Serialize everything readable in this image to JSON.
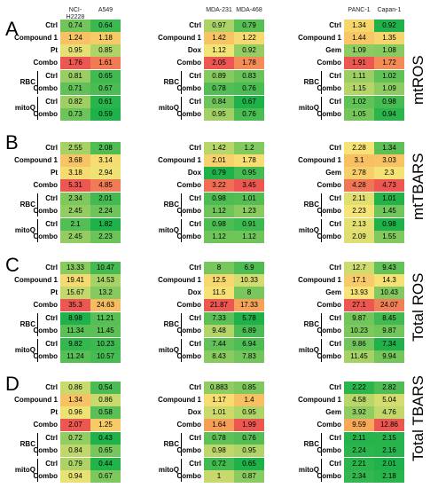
{
  "panel_letters": [
    "A",
    "B",
    "C",
    "D"
  ],
  "side_labels": [
    "mtROS",
    "mtTBARS",
    "Total ROS",
    "Total TBARS"
  ],
  "columns": {
    "left": [
      "NCI-H2228",
      "A549"
    ],
    "mid": [
      "MDA-231",
      "MDA-468"
    ],
    "right": [
      "PANC-1",
      "Capan-1"
    ]
  },
  "row_labels": {
    "left": [
      "Ctrl",
      "Compound 1",
      "Pt",
      "Combo",
      "Ctrl",
      "Combo",
      "Ctrl",
      "Combo"
    ],
    "mid": [
      "Ctrl",
      "Compound 1",
      "Dox",
      "Combo",
      "Ctrl",
      "Combo",
      "Ctrl",
      "Combo"
    ],
    "right": [
      "Ctrl",
      "Compound 1",
      "Gem",
      "Combo",
      "Ctrl",
      "Combo",
      "Ctrl",
      "Combo"
    ]
  },
  "group_labels": [
    "RBC",
    "mitoQ"
  ],
  "panels": [
    {
      "left": [
        [
          "0.74",
          "0.64"
        ],
        [
          "1.24",
          "1.18"
        ],
        [
          "0.95",
          "0.85"
        ],
        [
          "1.76",
          "1.61"
        ],
        [
          "0.81",
          "0.65"
        ],
        [
          "0.71",
          "0.67"
        ],
        [
          "0.82",
          "0.61"
        ],
        [
          "0.73",
          "0.59"
        ]
      ],
      "mid": [
        [
          "0.97",
          "0.79"
        ],
        [
          "1.42",
          "1.22"
        ],
        [
          "1.12",
          "0.92"
        ],
        [
          "2.05",
          "1.78"
        ],
        [
          "0.89",
          "0.83"
        ],
        [
          "0.78",
          "0.76"
        ],
        [
          "0.84",
          "0.67"
        ],
        [
          "0.95",
          "0.76"
        ]
      ],
      "right": [
        [
          "1.34",
          "0.92"
        ],
        [
          "1.44",
          "1.35"
        ],
        [
          "1.09",
          "1.08"
        ],
        [
          "1.91",
          "1.72"
        ],
        [
          "1.11",
          "1.02"
        ],
        [
          "1.15",
          "1.09"
        ],
        [
          "1.02",
          "0.98"
        ],
        [
          "1.05",
          "0.94"
        ]
      ]
    },
    {
      "left": [
        [
          "2.55",
          "2.08"
        ],
        [
          "3.68",
          "3.14"
        ],
        [
          "3.18",
          "2.94"
        ],
        [
          "5.31",
          "4.85"
        ],
        [
          "2.34",
          "2.01"
        ],
        [
          "2.45",
          "2.24"
        ],
        [
          "2.1",
          "1.82"
        ],
        [
          "2.45",
          "2.23"
        ]
      ],
      "mid": [
        [
          "1.42",
          "1.2"
        ],
        [
          "2.01",
          "1.78"
        ],
        [
          "0.79",
          "0.95"
        ],
        [
          "3.22",
          "3.45"
        ],
        [
          "0.98",
          "1.01"
        ],
        [
          "1.12",
          "1.23"
        ],
        [
          "0.98",
          "0.91"
        ],
        [
          "1.12",
          "1.12"
        ]
      ],
      "right": [
        [
          "2.28",
          "1.34"
        ],
        [
          "3.1",
          "3.03"
        ],
        [
          "2.78",
          "2.3"
        ],
        [
          "4.28",
          "4.73"
        ],
        [
          "2.11",
          "1.01"
        ],
        [
          "2.23",
          "1.45"
        ],
        [
          "2.13",
          "0.98"
        ],
        [
          "2.09",
          "1.55"
        ]
      ]
    },
    {
      "left": [
        [
          "13.33",
          "10.47"
        ],
        [
          "19.41",
          "14.53"
        ],
        [
          "15.67",
          "13.2"
        ],
        [
          "35.3",
          "24.63"
        ],
        [
          "8.98",
          "11.21"
        ],
        [
          "11.34",
          "11.45"
        ],
        [
          "9.82",
          "10.23"
        ],
        [
          "11.24",
          "10.57"
        ]
      ],
      "mid": [
        [
          "8",
          "6.9"
        ],
        [
          "12.5",
          "10.33"
        ],
        [
          "11.5",
          "8"
        ],
        [
          "21.87",
          "17.33"
        ],
        [
          "7.33",
          "5.78"
        ],
        [
          "9.48",
          "6.89"
        ],
        [
          "7.44",
          "6.94"
        ],
        [
          "8.43",
          "7.83"
        ]
      ],
      "right": [
        [
          "12.7",
          "9.43"
        ],
        [
          "17.1",
          "14.3"
        ],
        [
          "13.93",
          "10.43"
        ],
        [
          "27.1",
          "24.07"
        ],
        [
          "9.87",
          "8.45"
        ],
        [
          "10.23",
          "9.87"
        ],
        [
          "9.86",
          "7.34"
        ],
        [
          "11.45",
          "9.94"
        ]
      ]
    },
    {
      "left": [
        [
          "0.86",
          "0.54"
        ],
        [
          "1.34",
          "0.86"
        ],
        [
          "0.96",
          "0.58"
        ],
        [
          "2.07",
          "1.25"
        ],
        [
          "0.72",
          "0.43"
        ],
        [
          "0.84",
          "0.65"
        ],
        [
          "0.79",
          "0.44"
        ],
        [
          "0.94",
          "0.67"
        ]
      ],
      "mid": [
        [
          "0.883",
          "0.85"
        ],
        [
          "1.17",
          "1.4"
        ],
        [
          "1.01",
          "0.95"
        ],
        [
          "1.64",
          "1.99"
        ],
        [
          "0.78",
          "0.76"
        ],
        [
          "0.98",
          "0.95"
        ],
        [
          "0.72",
          "0.65"
        ],
        [
          "1",
          "0.87"
        ]
      ],
      "right": [
        [
          "2.22",
          "2.82"
        ],
        [
          "4.58",
          "5.04"
        ],
        [
          "3.92",
          "4.76"
        ],
        [
          "9.59",
          "12.86"
        ],
        [
          "2.11",
          "2.15"
        ],
        [
          "2.24",
          "2.16"
        ],
        [
          "2.21",
          "2.01"
        ],
        [
          "2.34",
          "2.18"
        ]
      ]
    }
  ],
  "colors": {
    "green": "#1fb24a",
    "yellow": "#f6e476",
    "orange": "#f8b15a",
    "red": "#ec5752"
  }
}
